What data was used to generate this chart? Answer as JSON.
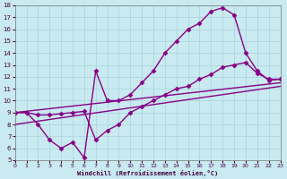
{
  "xlabel": "Windchill (Refroidissement éolien,°C)",
  "xlim": [
    0,
    23
  ],
  "ylim": [
    5,
    18
  ],
  "xticks": [
    0,
    1,
    2,
    3,
    4,
    5,
    6,
    7,
    8,
    9,
    10,
    11,
    12,
    13,
    14,
    15,
    16,
    17,
    18,
    19,
    20,
    21,
    22,
    23
  ],
  "yticks": [
    5,
    6,
    7,
    8,
    9,
    10,
    11,
    12,
    13,
    14,
    15,
    16,
    17,
    18
  ],
  "bg_color": "#c8eaf0",
  "grid_color": "#b0d8e0",
  "line_color": "#880088",
  "line_width": 1.0,
  "marker": "D",
  "marker_size": 2.5,
  "line1_x": [
    0,
    1,
    2,
    3,
    4,
    5,
    6,
    7,
    8,
    9,
    10,
    11,
    12,
    13,
    14,
    15,
    16,
    17,
    18,
    19,
    20,
    21,
    22,
    23
  ],
  "line1_y": [
    9,
    9,
    8,
    6.7,
    6,
    6.5,
    5.2,
    12.5,
    10.0,
    10.0,
    10.5,
    11.5,
    12.5,
    14.0,
    15.0,
    16.0,
    16.5,
    17.5,
    17.8,
    17.2,
    14.0,
    12.5,
    11.7,
    11.8
  ],
  "line2_x": [
    0,
    1,
    2,
    3,
    4,
    5,
    6,
    7,
    8,
    9,
    10,
    11,
    12,
    13,
    14,
    15,
    16,
    17,
    18,
    19,
    20,
    21,
    22,
    23
  ],
  "line2_y": [
    9.0,
    9.0,
    8.8,
    8.8,
    8.9,
    9.0,
    9.1,
    6.7,
    7.5,
    8.0,
    9.0,
    9.5,
    10.0,
    10.5,
    11.0,
    11.2,
    11.8,
    12.2,
    12.8,
    13.0,
    13.2,
    12.3,
    11.8,
    11.8
  ],
  "line3_x": [
    0,
    23
  ],
  "line3_y": [
    9.0,
    11.5
  ],
  "line4_x": [
    0,
    23
  ],
  "line4_y": [
    8.0,
    11.2
  ]
}
